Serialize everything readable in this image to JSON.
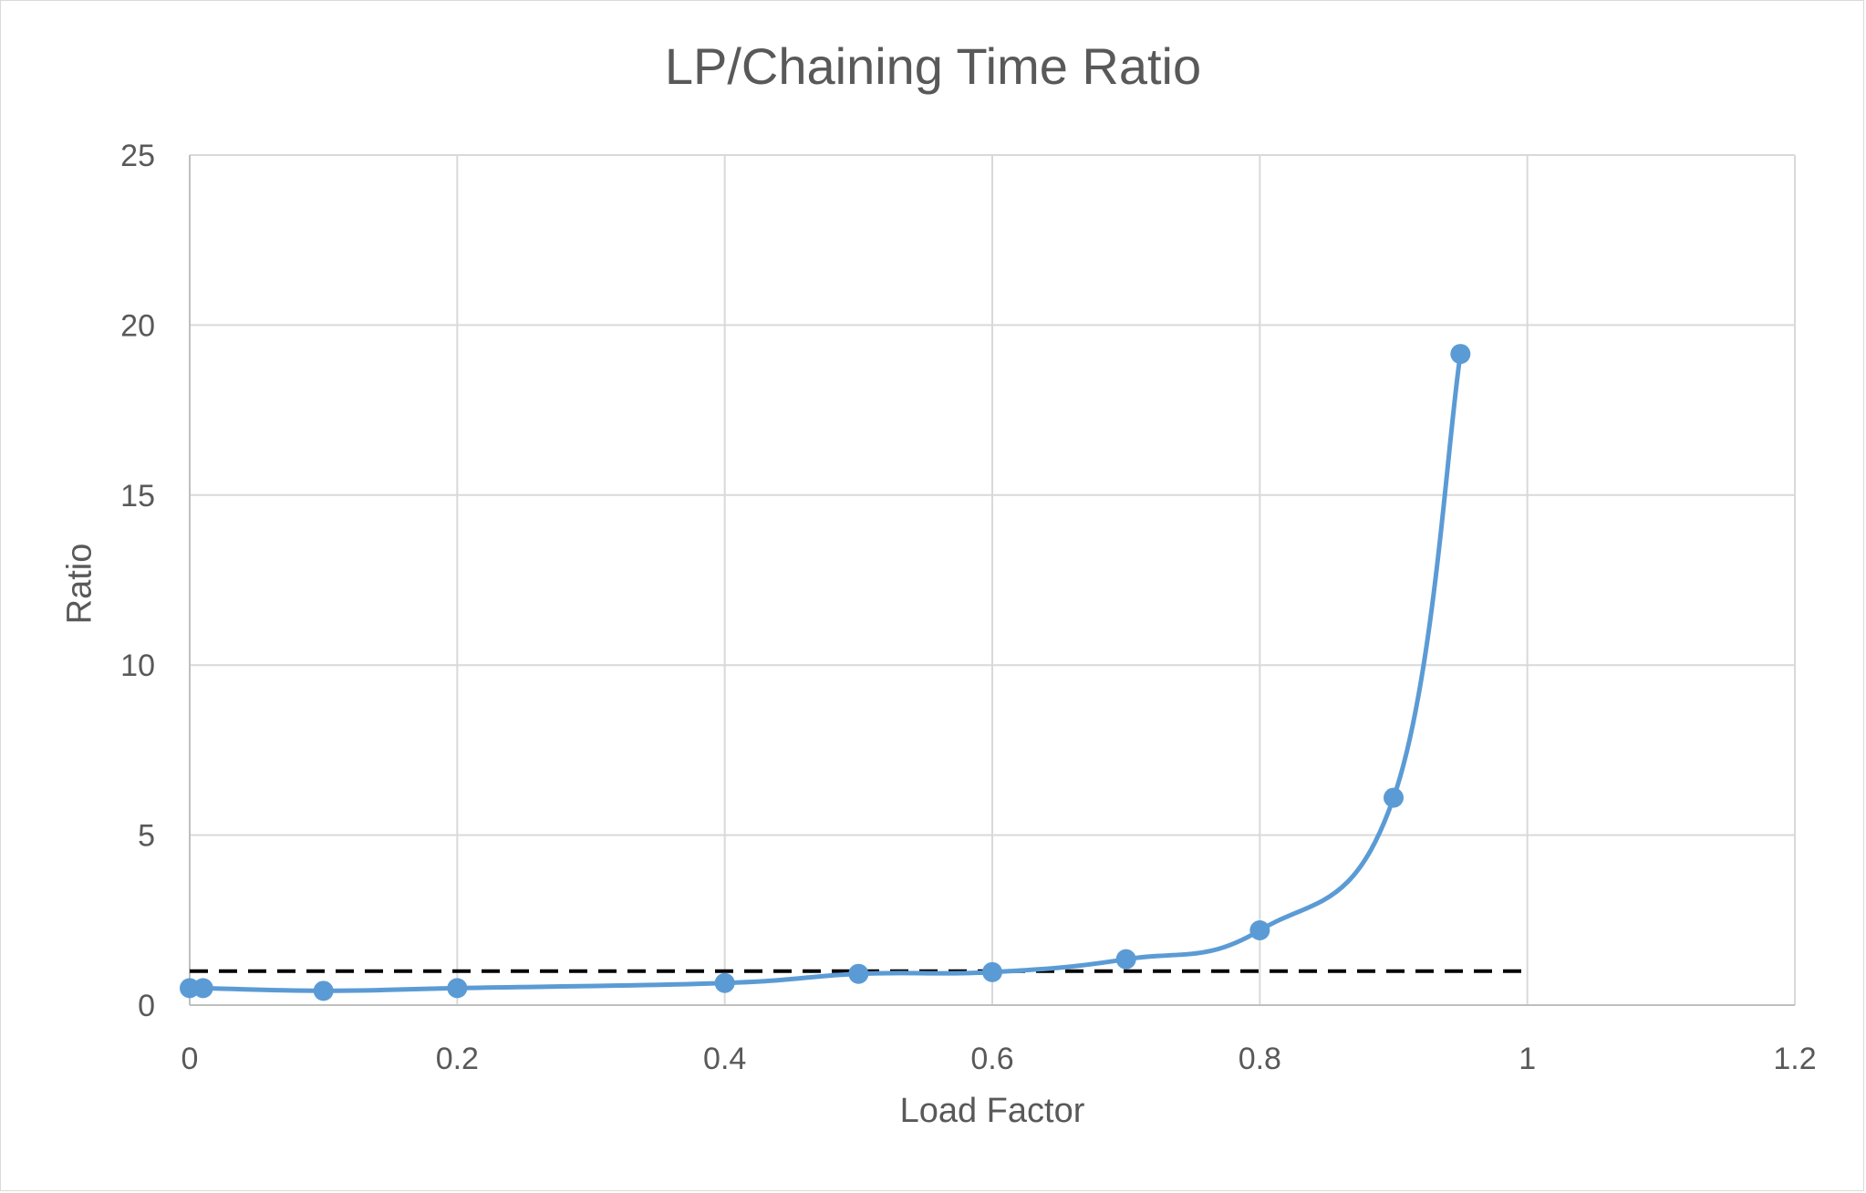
{
  "chart_data": {
    "type": "scatter",
    "title": "LP/Chaining Time Ratio",
    "xlabel": "Load Factor",
    "ylabel": "Ratio",
    "xlim": [
      0,
      1.2
    ],
    "ylim": [
      0,
      25
    ],
    "xticks": [
      0,
      0.2,
      0.4,
      0.6,
      0.8,
      1,
      1.2
    ],
    "yticks": [
      0,
      5,
      10,
      15,
      20,
      25
    ],
    "grid": true,
    "series": [
      {
        "style": "smoothed line with markers",
        "color": "#5b9bd5",
        "x": [
          0,
          0.01,
          0.1,
          0.2,
          0.4,
          0.5,
          0.6,
          0.7,
          0.8,
          0.9,
          0.95
        ],
        "y": [
          0.5,
          0.5,
          0.42,
          0.5,
          0.65,
          0.92,
          0.97,
          1.35,
          2.2,
          6.1,
          19.15
        ]
      }
    ],
    "reference_line": {
      "style": "dashed",
      "color": "#000000",
      "y": 1,
      "x": [
        0,
        1
      ]
    }
  }
}
